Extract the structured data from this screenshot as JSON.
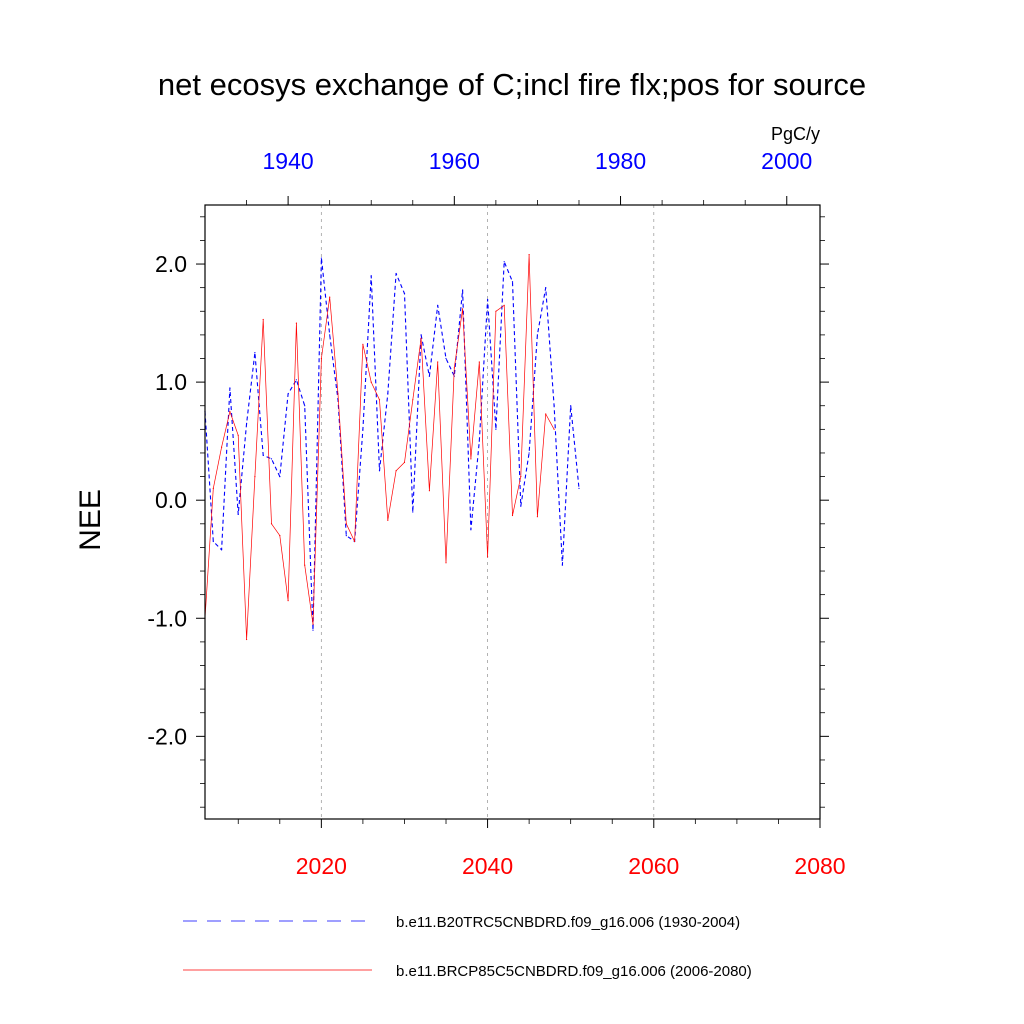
{
  "chart_data": {
    "type": "line",
    "title": "net ecosys exchange of C;incl fire flx;pos for source",
    "ylabel": "NEE",
    "units": "PgC/y",
    "ylim": [
      -2.7,
      2.5
    ],
    "y_ticks": [
      2.0,
      1.0,
      0.0,
      -1.0,
      -2.0
    ],
    "y_tick_labels": [
      "2.0",
      "1.0",
      "0.0",
      "-1.0",
      "-2.0"
    ],
    "top_axis": {
      "range": [
        1930,
        2004
      ],
      "ticks": [
        1940,
        1960,
        1980,
        2000
      ],
      "labels": [
        "1940",
        "1960",
        "1980",
        "2000"
      ],
      "color": "#0000ff"
    },
    "bottom_axis": {
      "range": [
        2006,
        2080
      ],
      "ticks": [
        2020,
        2040,
        2060,
        2080
      ],
      "labels": [
        "2020",
        "2040",
        "2060",
        "2080"
      ],
      "color": "#ff0000"
    },
    "grid_lines": [
      2020,
      2040,
      2060
    ],
    "series": [
      {
        "name": "b.e11.B20TRC5CNBDRD.f09_g16.006 (1930-2004)",
        "color": "#0000ff",
        "style": "dashed",
        "axis": "top",
        "start_year": 1930,
        "values": [
          0.75,
          -0.35,
          -0.42,
          0.95,
          -0.12,
          0.65,
          1.25,
          0.38,
          0.35,
          0.2,
          0.9,
          1.02,
          0.8,
          -1.1,
          2.05,
          1.4,
          0.85,
          -0.3,
          -0.35,
          0.6,
          1.9,
          0.25,
          0.9,
          1.92,
          1.75,
          -0.1,
          1.4,
          1.05,
          1.65,
          1.2,
          1.05,
          1.78,
          -0.25,
          0.5,
          1.7,
          0.6,
          2.02,
          1.85,
          -0.05,
          0.4,
          1.4,
          1.8,
          0.8,
          -0.55,
          0.8,
          0.1
        ]
      },
      {
        "name": "b.e11.BRCP85C5CNBDRD.f09_g16.006 (2006-2080)",
        "color": "#ff0000",
        "style": "solid",
        "axis": "bottom",
        "start_year": 2006,
        "values": [
          -1.0,
          0.1,
          0.45,
          0.75,
          0.55,
          -1.18,
          0.2,
          1.53,
          -0.2,
          -0.3,
          -0.85,
          1.5,
          -0.55,
          -1.05,
          1.2,
          1.72,
          0.9,
          -0.2,
          -0.35,
          1.32,
          1.0,
          0.85,
          -0.17,
          0.25,
          0.32,
          0.85,
          1.37,
          0.08,
          1.17,
          -0.53,
          1.12,
          1.62,
          0.35,
          1.17,
          -0.48,
          1.6,
          1.65,
          -0.13,
          0.2,
          2.08,
          -0.14,
          0.73,
          0.6
        ]
      }
    ]
  }
}
